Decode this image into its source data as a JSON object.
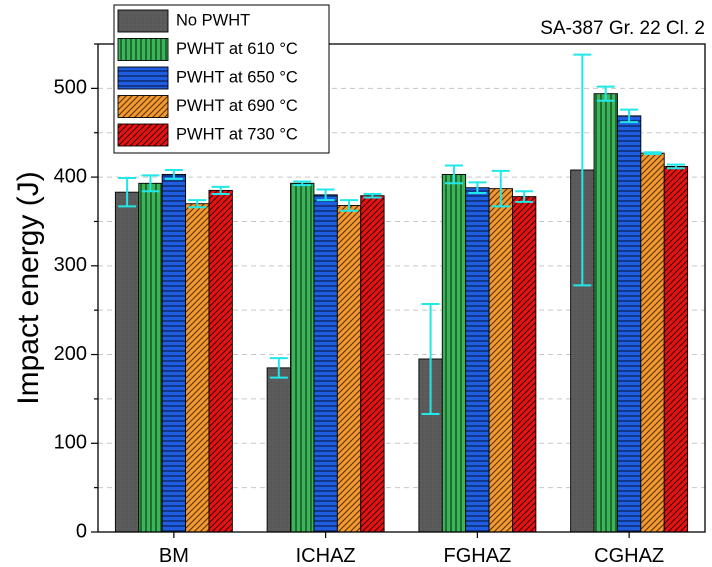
{
  "chart_data": {
    "type": "bar",
    "title": "",
    "annotation": "SA-387 Gr. 22 Cl. 2",
    "xlabel": "",
    "ylabel": "Impact energy (J)",
    "ylim": [
      0,
      550
    ],
    "yticks": [
      0,
      100,
      200,
      300,
      400,
      500
    ],
    "grid": "horizontal dashed",
    "legend_position": "top-left",
    "categories": [
      "BM",
      "ICHAZ",
      "FGHAZ",
      "CGHAZ"
    ],
    "series": [
      {
        "name": "No PWHT",
        "color": "#595959",
        "pattern": "dots",
        "values": [
          383,
          185,
          195,
          408
        ],
        "errors": [
          16,
          11,
          62,
          130
        ]
      },
      {
        "name": "PWHT at 610 °C",
        "color": "#3cb55a",
        "pattern": "vertical",
        "values": [
          393,
          393,
          403,
          494
        ],
        "errors": [
          9,
          2,
          10,
          8
        ]
      },
      {
        "name": "PWHT at 650 °C",
        "color": "#1f5ee0",
        "pattern": "horizontal",
        "values": [
          403,
          380,
          388,
          469
        ],
        "errors": [
          5,
          6,
          6,
          7
        ]
      },
      {
        "name": "PWHT at 690 °C",
        "color": "#f29a2e",
        "pattern": "diagonal",
        "values": [
          370,
          368,
          387,
          427
        ],
        "errors": [
          4,
          6,
          20,
          1
        ]
      },
      {
        "name": "PWHT at 730 °C",
        "color": "#e81212",
        "pattern": "diagonal",
        "values": [
          385,
          379,
          378,
          412
        ],
        "errors": [
          4,
          2,
          6,
          2
        ]
      }
    ],
    "error_bar_color": "#20e8e8"
  }
}
